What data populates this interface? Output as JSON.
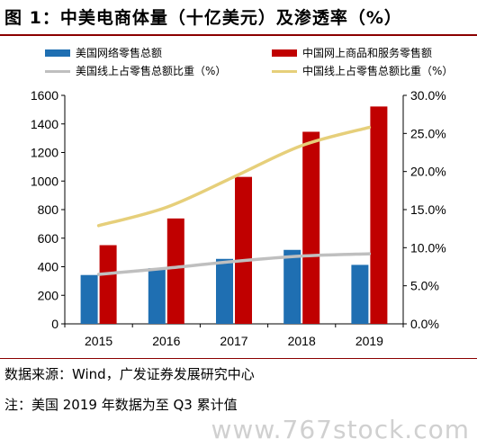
{
  "title": "图 1：中美电商体量（十亿美元）及渗透率（%）",
  "legend": {
    "us_bar": "美国网络零售总额",
    "cn_bar": "中国网上商品和服务零售额",
    "us_line": "美国线上占零售总额比重（%）",
    "cn_line": "中国线上占零售总额比重（%）"
  },
  "source_note": "数据来源：Wind，广发证券发展研究中心",
  "footnote": "注：美国 2019 年数据为至 Q3 累计值",
  "watermark": "www.767stock.com",
  "colors": {
    "us_bar": "#1f6fb2",
    "cn_bar": "#c00000",
    "us_line": "#bfbfbf",
    "cn_line": "#e6cf7a",
    "title_rule": "#8b0000"
  },
  "chart_data": {
    "type": "bar",
    "categories": [
      "2015",
      "2016",
      "2017",
      "2018",
      "2019"
    ],
    "series": [
      {
        "name": "美国网络零售总额",
        "type": "bar",
        "axis": "left",
        "values": [
          342,
          390,
          455,
          518,
          413
        ]
      },
      {
        "name": "中国网上商品和服务零售额",
        "type": "bar",
        "axis": "left",
        "values": [
          551,
          738,
          1029,
          1345,
          1522
        ]
      },
      {
        "name": "美国线上占零售总额比重（%）",
        "type": "line",
        "axis": "right",
        "values": [
          6.5,
          7.3,
          8.2,
          8.9,
          9.2
        ]
      },
      {
        "name": "中国线上占零售总额比重（%）",
        "type": "line",
        "axis": "right",
        "values": [
          12.9,
          15.3,
          19.3,
          23.4,
          25.8
        ]
      }
    ],
    "ylim": [
      0,
      1600
    ],
    "yticks": [
      "0",
      "200",
      "400",
      "600",
      "800",
      "1000",
      "1200",
      "1400",
      "1600"
    ],
    "y2lim": [
      0,
      30
    ],
    "y2ticks": [
      "0.0%",
      "5.0%",
      "10.0%",
      "15.0%",
      "20.0%",
      "25.0%",
      "30.0%"
    ],
    "grid": false
  }
}
